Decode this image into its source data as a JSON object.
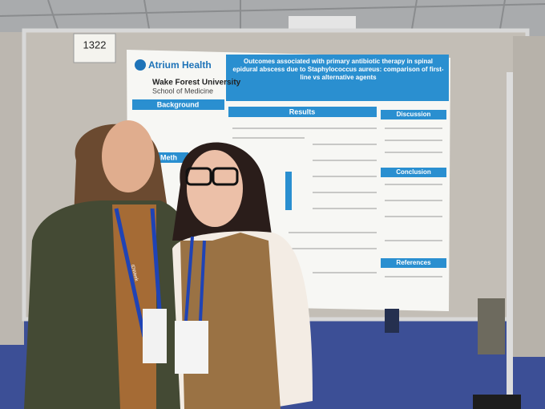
{
  "booth_number": "1322",
  "poster": {
    "logo_primary": "Atrium Health",
    "logo_secondary": "Wake Forest University",
    "logo_secondary_sub": "School of Medicine",
    "title": "Outcomes associated with primary antibiotic therapy in spinal epidural abscess due to Staphylococcus aureus: comparison of first-line vs alternative agents",
    "sections": [
      "Background",
      "Meth",
      "Results",
      "Discussion",
      "Conclusion",
      "References"
    ]
  },
  "lanyard_text": "IDWeek"
}
